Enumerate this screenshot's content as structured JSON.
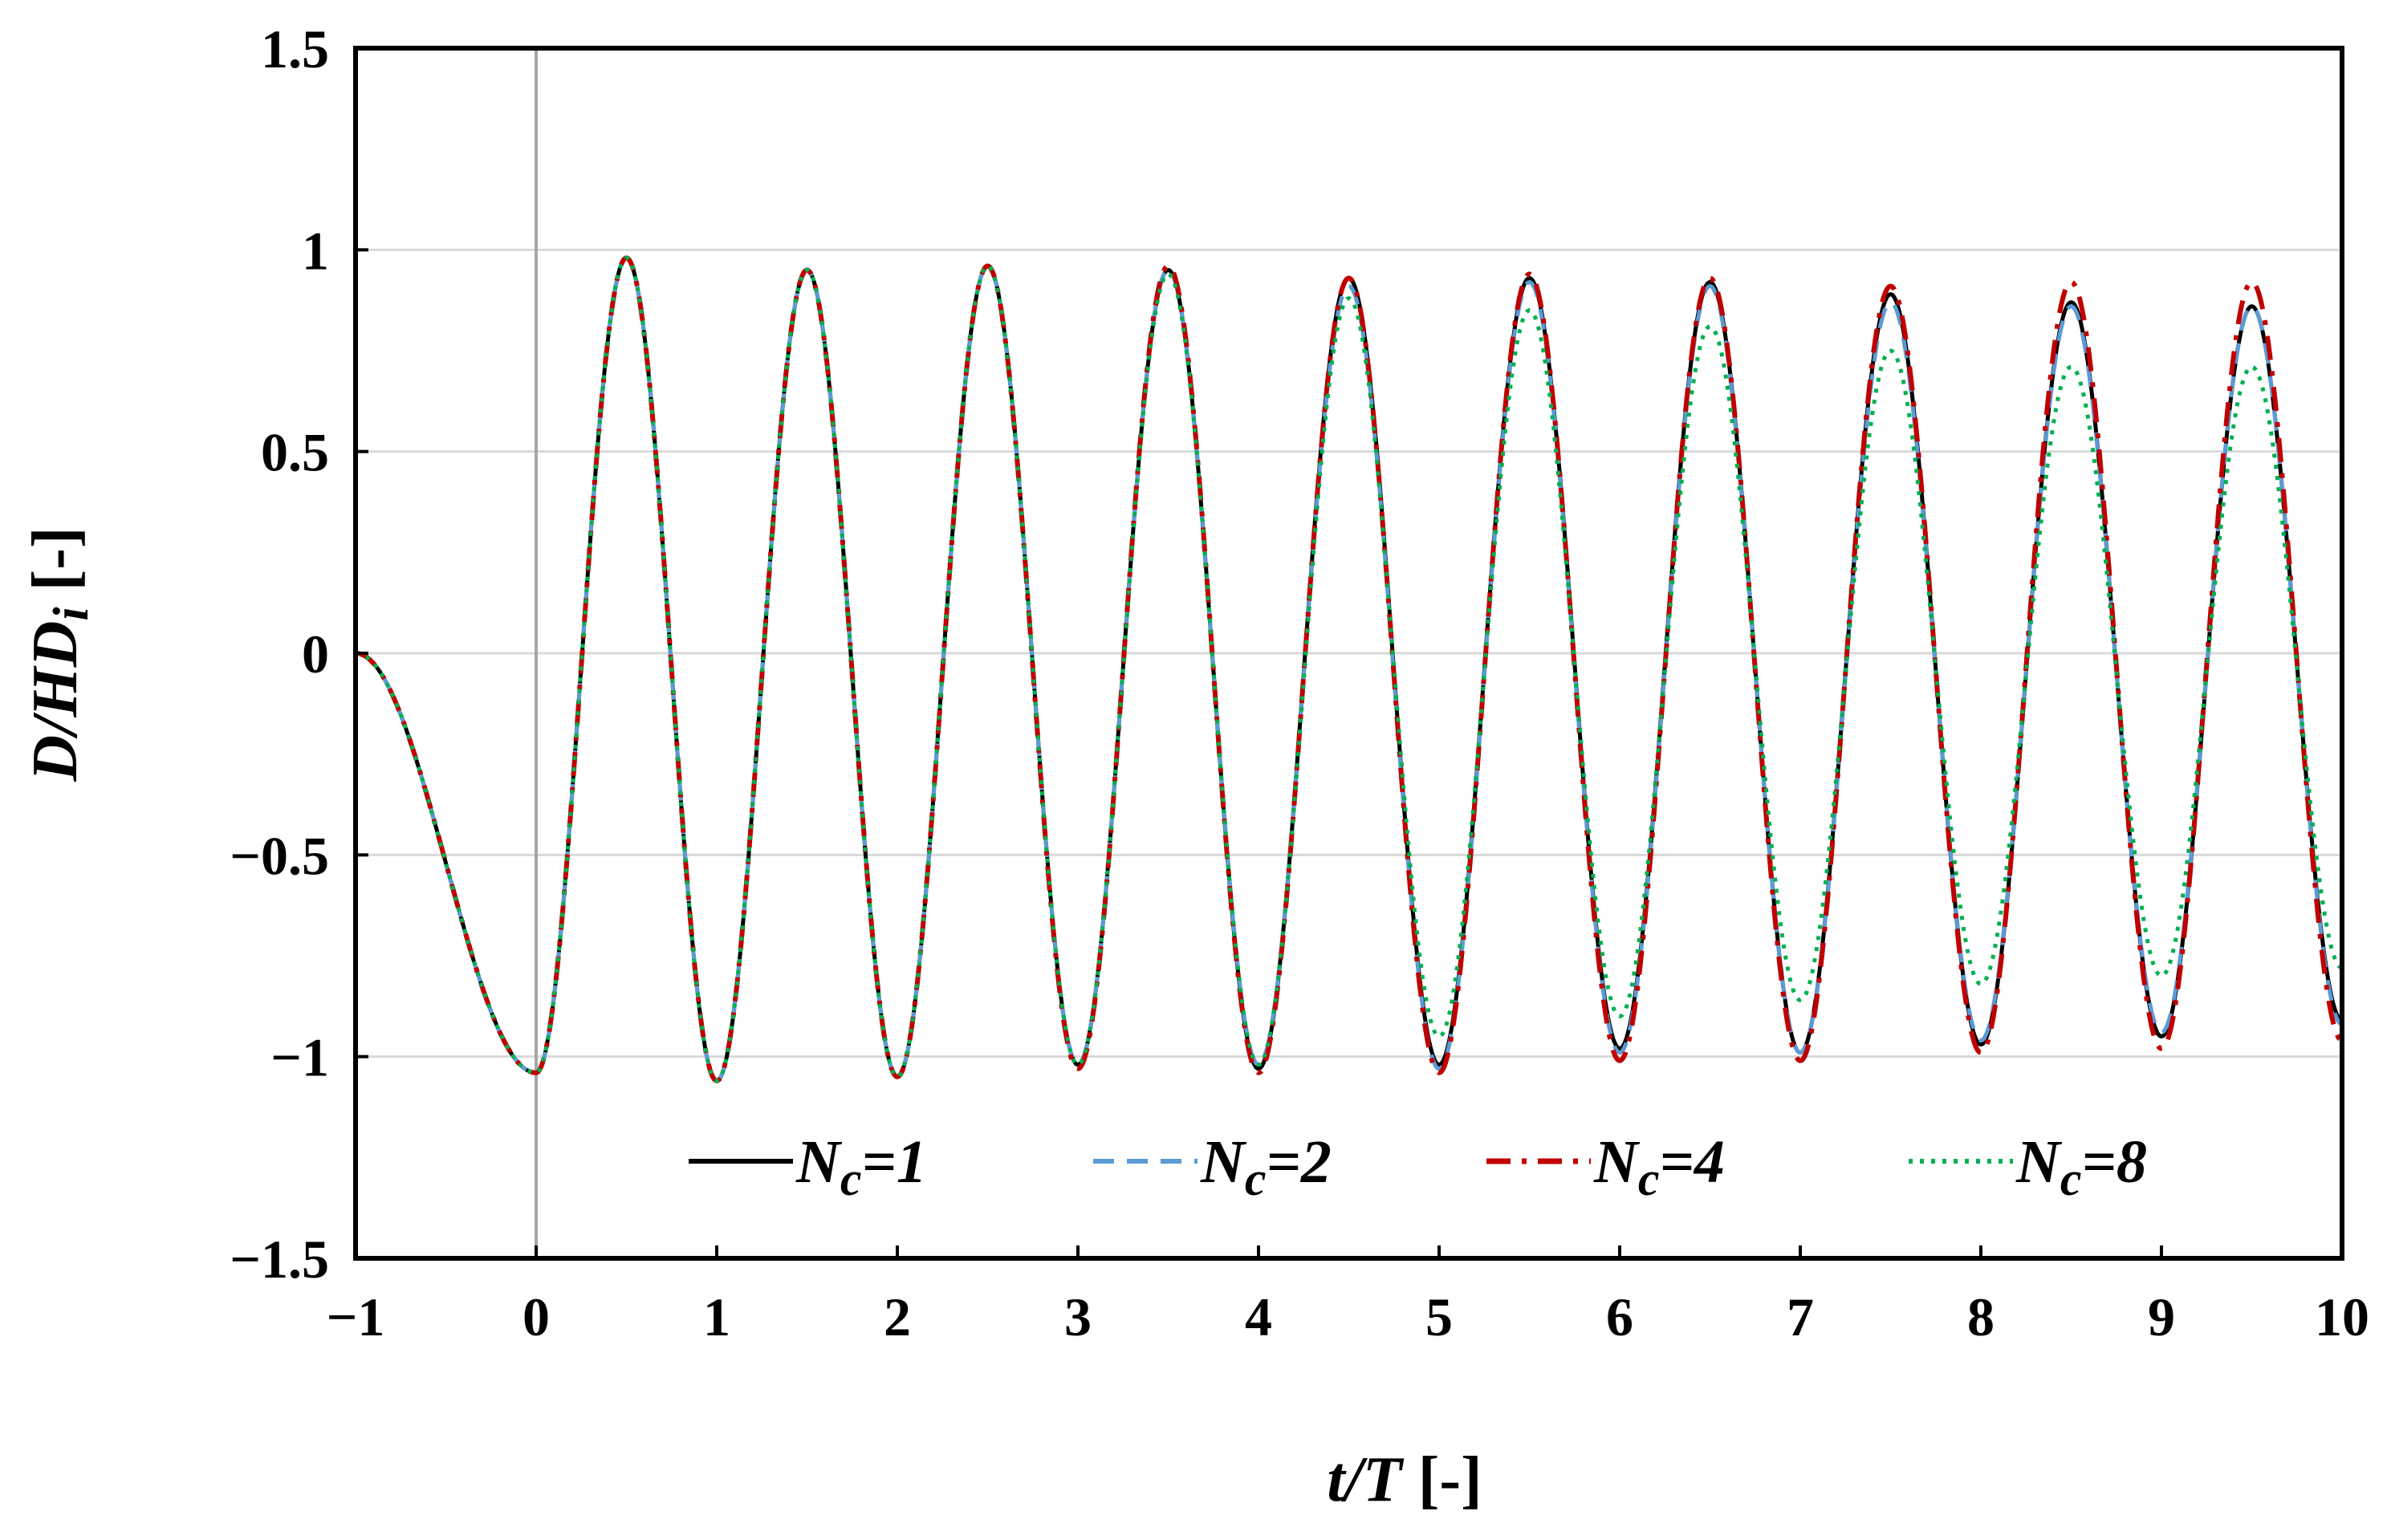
{
  "chart_data": {
    "type": "line",
    "xlabel_var": "t/T",
    "xlabel_unit": "[-]",
    "ylabel_var": "D/HD",
    "ylabel_sub": "i",
    "ylabel_unit": "[-]",
    "xlim": [
      -1,
      10
    ],
    "ylim": [
      -1.5,
      1.5
    ],
    "x_ticks": [
      -1,
      0,
      1,
      2,
      3,
      4,
      5,
      6,
      7,
      8,
      9,
      10
    ],
    "x_tick_labels": [
      "−1",
      "0",
      "1",
      "2",
      "3",
      "4",
      "5",
      "6",
      "7",
      "8",
      "9",
      "10"
    ],
    "y_ticks": [
      -1.5,
      -1,
      -0.5,
      0,
      0.5,
      1,
      1.5
    ],
    "y_tick_labels": [
      "−1.5",
      "−1",
      "−0.5",
      "0",
      "0.5",
      "1",
      "1.5"
    ],
    "grid": "horizontal",
    "reference_line_x": 0,
    "legend_position": "bottom",
    "series": [
      {
        "name": "N_c=1",
        "legend_main": "N",
        "legend_sub": "c",
        "legend_tail": "=1",
        "color": "#000000",
        "dash": "none",
        "x": [
          -1,
          0,
          0.5,
          1,
          1.5,
          2,
          2.5,
          3,
          3.5,
          4,
          4.5,
          5,
          5.5,
          6,
          6.5,
          7,
          7.5,
          8,
          8.5,
          9,
          9.5,
          10
        ],
        "y": [
          0,
          -1.04,
          0.98,
          -1.06,
          0.95,
          -1.05,
          0.96,
          -1.02,
          0.95,
          -1.03,
          0.93,
          -1.02,
          0.93,
          -0.98,
          0.92,
          -0.99,
          0.89,
          -0.97,
          0.87,
          -0.95,
          0.86,
          -0.91
        ]
      },
      {
        "name": "N_c=2",
        "legend_main": "N",
        "legend_sub": "c",
        "legend_tail": "=2",
        "color": "#5B9BD5",
        "dash": "dashed",
        "x": [
          -1,
          0,
          0.5,
          1,
          1.5,
          2,
          2.5,
          3,
          3.5,
          4,
          4.5,
          5,
          5.5,
          6,
          6.5,
          7,
          7.5,
          8,
          8.5,
          9,
          9.5,
          10
        ],
        "y": [
          0,
          -1.04,
          0.98,
          -1.06,
          0.95,
          -1.05,
          0.96,
          -1.02,
          0.95,
          -1.02,
          0.91,
          -1.03,
          0.92,
          -0.99,
          0.91,
          -0.99,
          0.87,
          -0.96,
          0.86,
          -0.94,
          0.86,
          -0.92
        ]
      },
      {
        "name": "N_c=4",
        "legend_main": "N",
        "legend_sub": "c",
        "legend_tail": "=4",
        "color": "#C00000",
        "dash": "dash-dot",
        "x": [
          -1,
          0,
          0.5,
          1,
          1.5,
          2,
          2.5,
          3,
          3.5,
          4,
          4.5,
          5,
          5.5,
          6,
          6.5,
          7,
          7.5,
          8,
          8.5,
          9,
          9.5,
          10
        ],
        "y": [
          0,
          -1.04,
          0.98,
          -1.06,
          0.95,
          -1.05,
          0.96,
          -1.03,
          0.96,
          -1.04,
          0.93,
          -1.04,
          0.94,
          -1.01,
          0.93,
          -1.01,
          0.91,
          -0.99,
          0.92,
          -0.98,
          0.92,
          -0.96
        ]
      },
      {
        "name": "N_c=8",
        "legend_main": "N",
        "legend_sub": "c",
        "legend_tail": "=8",
        "color": "#00B050",
        "dash": "dotted",
        "x": [
          -1,
          0,
          0.5,
          1,
          1.5,
          2,
          2.5,
          3,
          3.5,
          4,
          4.5,
          5,
          5.5,
          6,
          6.5,
          7,
          7.5,
          8,
          8.5,
          9,
          9.5,
          10
        ],
        "y": [
          0,
          -1.04,
          0.98,
          -1.06,
          0.95,
          -1.05,
          0.96,
          -1.02,
          0.94,
          -1.02,
          0.88,
          -0.95,
          0.85,
          -0.9,
          0.81,
          -0.86,
          0.75,
          -0.82,
          0.71,
          -0.8,
          0.71,
          -0.78
        ]
      }
    ]
  }
}
